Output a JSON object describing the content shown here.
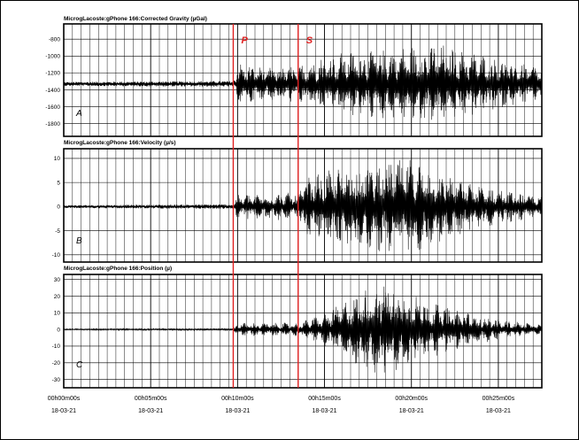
{
  "chart_data": {
    "type": "line",
    "x_axis": {
      "range_seconds": [
        0,
        1650
      ],
      "tick_labels": [
        {
          "time": "00h00m00s",
          "date": "18-03-21"
        },
        {
          "time": "00h05m00s",
          "date": "18-03-21"
        },
        {
          "time": "00h10m00s",
          "date": "18-03-21"
        },
        {
          "time": "00h15m00s",
          "date": "18-03-21"
        },
        {
          "time": "00h20m00s",
          "date": "18-03-21"
        },
        {
          "time": "00h25m00s",
          "date": "18-03-21"
        }
      ]
    },
    "markers": [
      {
        "label": "P",
        "time_seconds": 585,
        "color": "#e02020"
      },
      {
        "label": "S",
        "time_seconds": 809,
        "color": "#e02020"
      }
    ],
    "panels": [
      {
        "id": "A",
        "title": "MicrogLacoste:gPhone 166:Corrected Gravity (µGal)",
        "ylim": [
          -1950,
          -620
        ],
        "yticks": [
          -800,
          -1000,
          -1200,
          -1400,
          -1600,
          -1800
        ],
        "baseline": -1330,
        "amplitude_envelope": [
          {
            "t": 0,
            "amp": 25
          },
          {
            "t": 585,
            "amp": 35
          },
          {
            "t": 600,
            "amp": 250
          },
          {
            "t": 700,
            "amp": 200
          },
          {
            "t": 809,
            "amp": 220
          },
          {
            "t": 950,
            "amp": 380
          },
          {
            "t": 1100,
            "amp": 420
          },
          {
            "t": 1300,
            "amp": 480
          },
          {
            "t": 1500,
            "amp": 300
          },
          {
            "t": 1650,
            "amp": 200
          }
        ]
      },
      {
        "id": "B",
        "title": "MicrogLacoste:gPhone 166:Velocity (µ/s)",
        "ylim": [
          -11.5,
          12
        ],
        "yticks": [
          10,
          5,
          0,
          -5,
          -10
        ],
        "baseline": 0,
        "amplitude_envelope": [
          {
            "t": 0,
            "amp": 0.3
          },
          {
            "t": 585,
            "amp": 0.5
          },
          {
            "t": 600,
            "amp": 2.5
          },
          {
            "t": 809,
            "amp": 3
          },
          {
            "t": 830,
            "amp": 6
          },
          {
            "t": 1000,
            "amp": 9
          },
          {
            "t": 1200,
            "amp": 10
          },
          {
            "t": 1400,
            "amp": 5
          },
          {
            "t": 1650,
            "amp": 2
          }
        ]
      },
      {
        "id": "C",
        "title": "MicrogLacoste:gPhone 166:Position (µ)",
        "ylim": [
          -35,
          33
        ],
        "yticks": [
          30,
          20,
          10,
          0,
          -10,
          -20,
          -30
        ],
        "baseline": 0,
        "amplitude_envelope": [
          {
            "t": 0,
            "amp": 0.4
          },
          {
            "t": 585,
            "amp": 0.6
          },
          {
            "t": 600,
            "amp": 4
          },
          {
            "t": 809,
            "amp": 4
          },
          {
            "t": 900,
            "amp": 10
          },
          {
            "t": 1100,
            "amp": 30
          },
          {
            "t": 1300,
            "amp": 15
          },
          {
            "t": 1500,
            "amp": 6
          },
          {
            "t": 1650,
            "amp": 3
          }
        ]
      }
    ]
  }
}
